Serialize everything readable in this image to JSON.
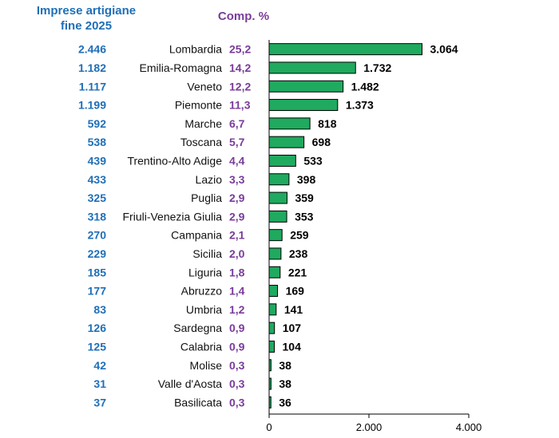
{
  "header": {
    "imprese_line1": "Imprese artigiane",
    "imprese_line2": "fine 2025",
    "comp_label": "Comp. %"
  },
  "chart_data": {
    "type": "bar",
    "orientation": "horizontal",
    "title": "",
    "xlabel": "",
    "ylabel": "",
    "xlim": [
      0,
      4000
    ],
    "x_ticks": [
      "0",
      "2.000",
      "4.000"
    ],
    "categories": [
      "Lombardia",
      "Emilia-Romagna",
      "Veneto",
      "Piemonte",
      "Marche",
      "Toscana",
      "Trentino-Alto Adige",
      "Lazio",
      "Puglia",
      "Friuli-Venezia Giulia",
      "Campania",
      "Sicilia",
      "Liguria",
      "Abruzzo",
      "Umbria",
      "Sardegna",
      "Calabria",
      "Molise",
      "Valle d'Aosta",
      "Basilicata"
    ],
    "values": [
      3064,
      1732,
      1482,
      1373,
      818,
      698,
      533,
      398,
      359,
      353,
      259,
      238,
      221,
      169,
      141,
      107,
      104,
      38,
      38,
      36
    ],
    "value_labels": [
      "3.064",
      "1.732",
      "1.482",
      "1.373",
      "818",
      "698",
      "533",
      "398",
      "359",
      "353",
      "259",
      "238",
      "221",
      "169",
      "141",
      "107",
      "104",
      "38",
      "38",
      "36"
    ],
    "imprese_labels": [
      "2.446",
      "1.182",
      "1.117",
      "1.199",
      "592",
      "538",
      "439",
      "433",
      "325",
      "318",
      "270",
      "229",
      "185",
      "177",
      "83",
      "126",
      "125",
      "42",
      "31",
      "37"
    ],
    "comp_labels": [
      "25,2",
      "14,2",
      "12,2",
      "11,3",
      "6,7",
      "5,7",
      "4,4",
      "3,3",
      "2,9",
      "2,9",
      "2,1",
      "2,0",
      "1,8",
      "1,4",
      "1,2",
      "0,9",
      "0,9",
      "0,3",
      "0,3",
      "0,3"
    ],
    "bar_color": "#1faa5f",
    "imprese_color": "#1f6fb7",
    "comp_color": "#7a3c9a"
  }
}
